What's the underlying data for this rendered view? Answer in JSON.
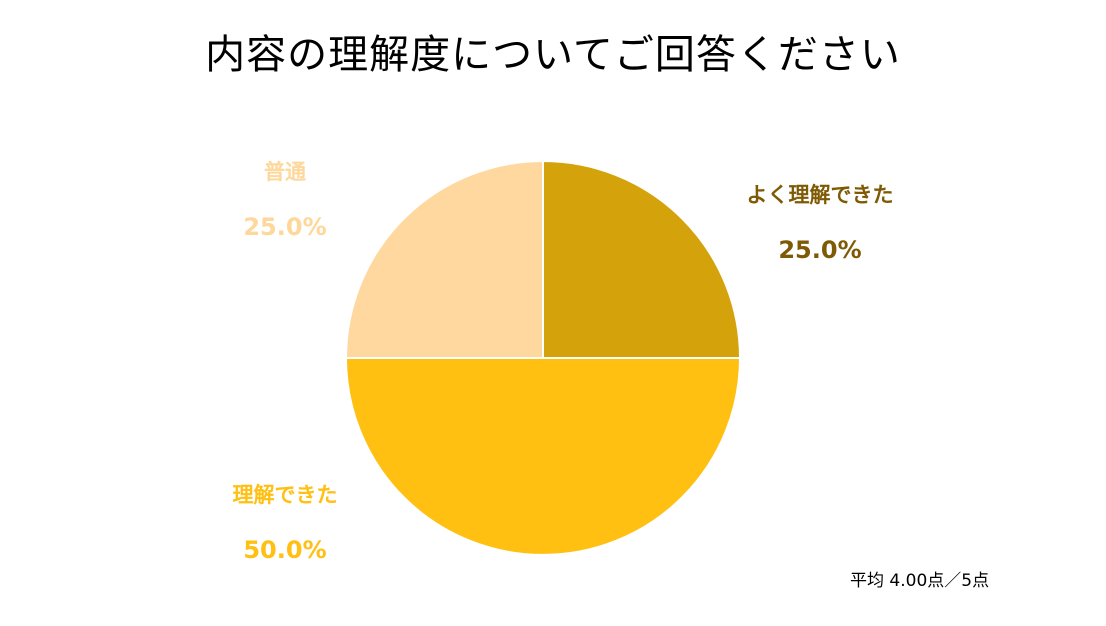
{
  "chart_data": {
    "type": "pie",
    "title": "内容の理解度についてご回答ください",
    "slices": [
      {
        "label": "よく理解できた",
        "value": 25.0,
        "percent_label": "25.0%",
        "color": "#D4A20A",
        "label_color": "#7F5A05"
      },
      {
        "label": "理解できた",
        "value": 50.0,
        "percent_label": "50.0%",
        "color": "#FFC012",
        "label_color": "#FFBF13"
      },
      {
        "label": "普通",
        "value": 25.0,
        "percent_label": "25.0%",
        "color": "#FFD8A0",
        "label_color": "#FED79B"
      }
    ],
    "start_angle_deg": 0,
    "direction": "clockwise",
    "legend": "none"
  },
  "footnote": "平均 4.00点／5点"
}
